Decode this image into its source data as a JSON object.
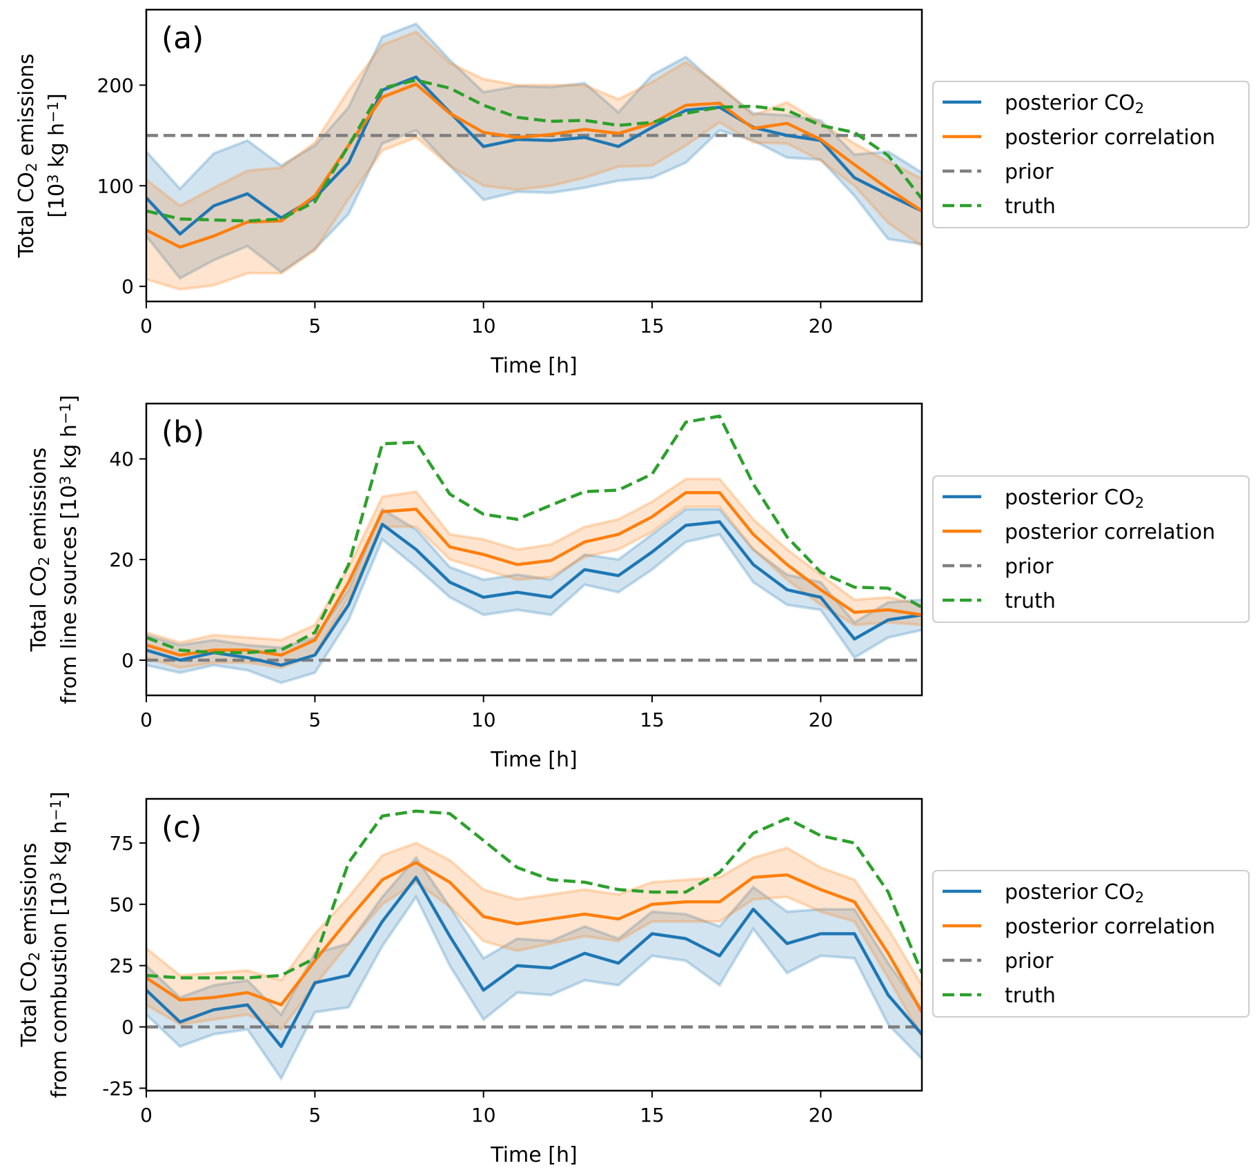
{
  "figure": {
    "legend_items": [
      {
        "key": "posterior_co2",
        "label_main": "posterior CO",
        "label_sub": "2",
        "color": "#1f77b4",
        "style": "solid"
      },
      {
        "key": "posterior_correlation",
        "label_main": "posterior correlation",
        "label_sub": "",
        "color": "#ff7f0e",
        "style": "solid"
      },
      {
        "key": "prior",
        "label_main": "prior",
        "label_sub": "",
        "color": "#7f7f7f",
        "style": "dashed"
      },
      {
        "key": "truth",
        "label_main": "truth",
        "label_sub": "",
        "color": "#2ca02c",
        "style": "dashed"
      }
    ]
  },
  "chart_data": [
    {
      "type": "line",
      "panel": "(a)",
      "xlabel": "Time [h]",
      "ylabel_lines": [
        [
          {
            "t": "Total CO"
          },
          {
            "t": "2",
            "sub": true
          },
          {
            "t": " emissions"
          }
        ],
        [
          {
            "t": "[10"
          },
          {
            "t": "3",
            "sup": true
          },
          {
            "t": " kg h"
          },
          {
            "t": "−1",
            "sup": true
          },
          {
            "t": "]"
          }
        ]
      ],
      "xlim": [
        0,
        23
      ],
      "ylim": [
        -15,
        275
      ],
      "xticks": [
        0,
        5,
        10,
        15,
        20
      ],
      "yticks": [
        0,
        100,
        200
      ],
      "ytick_labels": [
        "0",
        "100",
        "200"
      ],
      "x": [
        0,
        1,
        2,
        3,
        4,
        5,
        6,
        7,
        8,
        9,
        10,
        11,
        12,
        13,
        14,
        15,
        16,
        17,
        18,
        19,
        20,
        21,
        22,
        23
      ],
      "series": [
        {
          "key": "posterior_co2",
          "name": "posterior CO2",
          "values": [
            88,
            52,
            80,
            92,
            68,
            88,
            123,
            195,
            208,
            173,
            139,
            146,
            145,
            148,
            139,
            158,
            175,
            178,
            158,
            150,
            145,
            108,
            91,
            75
          ],
          "lower": [
            50,
            8,
            26,
            40,
            14,
            37,
            72,
            142,
            155,
            120,
            86,
            94,
            93,
            98,
            105,
            108,
            123,
            155,
            145,
            128,
            126,
            90,
            47,
            42
          ],
          "upper": [
            134,
            97,
            132,
            145,
            120,
            140,
            178,
            248,
            261,
            225,
            193,
            199,
            198,
            202,
            173,
            210,
            228,
            198,
            172,
            170,
            165,
            131,
            134,
            113
          ]
        },
        {
          "key": "posterior_correlation",
          "name": "posterior correlation",
          "values": [
            56,
            39,
            50,
            64,
            65,
            90,
            140,
            188,
            201,
            172,
            153,
            148,
            151,
            156,
            152,
            162,
            180,
            182,
            157,
            162,
            146,
            121,
            97,
            75
          ],
          "lower": [
            7,
            -3,
            1,
            13,
            13,
            36,
            87,
            135,
            148,
            120,
            100,
            96,
            100,
            108,
            119,
            120,
            140,
            163,
            143,
            142,
            125,
            100,
            63,
            40
          ],
          "upper": [
            106,
            80,
            98,
            115,
            118,
            143,
            195,
            240,
            253,
            222,
            206,
            200,
            200,
            200,
            186,
            203,
            223,
            200,
            170,
            183,
            162,
            142,
            124,
            107
          ]
        },
        {
          "key": "prior",
          "name": "prior",
          "values": [
            150,
            150,
            150,
            150,
            150,
            150,
            150,
            150,
            150,
            150,
            150,
            150,
            150,
            150,
            150,
            150,
            150,
            150,
            150,
            150,
            150,
            150,
            150,
            150
          ]
        },
        {
          "key": "truth",
          "name": "truth",
          "values": [
            75,
            67,
            66,
            65,
            67,
            84,
            140,
            197,
            205,
            197,
            180,
            168,
            164,
            165,
            160,
            163,
            172,
            178,
            179,
            175,
            160,
            153,
            130,
            87
          ]
        }
      ]
    },
    {
      "type": "line",
      "panel": "(b)",
      "xlabel": "Time [h]",
      "ylabel_lines": [
        [
          {
            "t": "Total CO"
          },
          {
            "t": "2",
            "sub": true
          },
          {
            "t": " emissions"
          }
        ],
        [
          {
            "t": "from line sources [10"
          },
          {
            "t": "3",
            "sup": true
          },
          {
            "t": " kg h"
          },
          {
            "t": "−1",
            "sup": true
          },
          {
            "t": "]"
          }
        ]
      ],
      "xlim": [
        0,
        23
      ],
      "ylim": [
        -7,
        51
      ],
      "xticks": [
        0,
        5,
        10,
        15,
        20
      ],
      "yticks": [
        0,
        20,
        40
      ],
      "ytick_labels": [
        "0",
        "20",
        "40"
      ],
      "x": [
        0,
        1,
        2,
        3,
        4,
        5,
        6,
        7,
        8,
        9,
        10,
        11,
        12,
        13,
        14,
        15,
        16,
        17,
        18,
        19,
        20,
        21,
        22,
        23
      ],
      "series": [
        {
          "key": "posterior_co2",
          "name": "posterior CO2",
          "values": [
            2,
            0,
            1.5,
            0.5,
            -1,
            1,
            11,
            27,
            22,
            15.5,
            12.5,
            13.5,
            12.5,
            18,
            16.8,
            21.5,
            26.8,
            27.5,
            19,
            14,
            12.5,
            4.2,
            8,
            9
          ],
          "lower": [
            -1,
            -2.5,
            -1,
            -2,
            -4.5,
            -2.5,
            8,
            24,
            18.5,
            12.5,
            9,
            10,
            9,
            15,
            13.5,
            18,
            23.5,
            25,
            15.5,
            11,
            10,
            0.5,
            4.5,
            6
          ],
          "upper": [
            5,
            3,
            4,
            3,
            2.5,
            4.5,
            14,
            30,
            26,
            18.5,
            16,
            17,
            16,
            21,
            20,
            25,
            30,
            30,
            22,
            17,
            15.5,
            7.5,
            11.5,
            12
          ]
        },
        {
          "key": "posterior_correlation",
          "name": "posterior correlation",
          "values": [
            3,
            1,
            2,
            2,
            1,
            4,
            15.5,
            29.5,
            30,
            22.5,
            21,
            19,
            19.8,
            23.5,
            25,
            28.5,
            33.3,
            33.3,
            25,
            19,
            14,
            9.5,
            10,
            9
          ],
          "lower": [
            0.5,
            -1.5,
            -0.5,
            -0.5,
            -1.5,
            1,
            12.5,
            26.5,
            26.5,
            20,
            18,
            16,
            16.5,
            20.5,
            22,
            25.5,
            30.5,
            30.5,
            22,
            16,
            11,
            7,
            7.5,
            7
          ],
          "upper": [
            5.5,
            3.5,
            5,
            4.5,
            4,
            7,
            18.5,
            32.5,
            33.5,
            25,
            24,
            22,
            23,
            26.5,
            28,
            31.5,
            36,
            36,
            28,
            22,
            17,
            12,
            12.5,
            11
          ]
        },
        {
          "key": "prior",
          "name": "prior",
          "values": [
            0,
            0,
            0,
            0,
            0,
            0,
            0,
            0,
            0,
            0,
            0,
            0,
            0,
            0,
            0,
            0,
            0,
            0,
            0,
            0,
            0,
            0,
            0,
            0
          ]
        },
        {
          "key": "truth",
          "name": "truth",
          "values": [
            4.5,
            2,
            1.5,
            1.5,
            2,
            5.5,
            19,
            43,
            43.3,
            33,
            29,
            28,
            30.8,
            33.5,
            33.8,
            37,
            47.3,
            48.5,
            35,
            24.5,
            17.5,
            14.5,
            14.3,
            10.5
          ]
        }
      ]
    },
    {
      "type": "line",
      "panel": "(c)",
      "xlabel": "Time [h]",
      "ylabel_lines": [
        [
          {
            "t": "Total CO"
          },
          {
            "t": "2",
            "sub": true
          },
          {
            "t": " emissions"
          }
        ],
        [
          {
            "t": "from combustion [10"
          },
          {
            "t": "3",
            "sup": true
          },
          {
            "t": " kg h"
          },
          {
            "t": "−1",
            "sup": true
          },
          {
            "t": "]"
          }
        ]
      ],
      "xlim": [
        0,
        23
      ],
      "ylim": [
        -26,
        93
      ],
      "xticks": [
        0,
        5,
        10,
        15,
        20
      ],
      "yticks": [
        -25,
        0,
        25,
        50,
        75
      ],
      "ytick_labels": [
        "-25",
        "0",
        "25",
        "50",
        "75"
      ],
      "x": [
        0,
        1,
        2,
        3,
        4,
        5,
        6,
        7,
        8,
        9,
        10,
        11,
        12,
        13,
        14,
        15,
        16,
        17,
        18,
        19,
        20,
        21,
        22,
        23
      ],
      "series": [
        {
          "key": "posterior_co2",
          "name": "posterior CO2",
          "values": [
            15,
            2,
            7,
            9,
            -8,
            18,
            21,
            43,
            61,
            37,
            15,
            25,
            24,
            30,
            26,
            38,
            36,
            29,
            48,
            34,
            38,
            38,
            13,
            -3
          ],
          "lower": [
            5,
            -8,
            -3,
            -1,
            -21,
            6,
            8,
            33,
            53,
            25,
            3,
            14,
            13,
            19,
            17,
            29,
            27,
            17,
            40,
            22,
            29,
            28,
            1,
            -13
          ],
          "upper": [
            25,
            12,
            17,
            19,
            5,
            30,
            34,
            53,
            69,
            49,
            28,
            36,
            35,
            41,
            36,
            47,
            46,
            41,
            57,
            47,
            48,
            48,
            26,
            7
          ]
        },
        {
          "key": "posterior_correlation",
          "name": "posterior correlation",
          "values": [
            20,
            11,
            12,
            14,
            9,
            27,
            44,
            60,
            67,
            59,
            45,
            42,
            44,
            46,
            44,
            50,
            51,
            51,
            61,
            62,
            56,
            51,
            30,
            6
          ],
          "lower": [
            9,
            1,
            3,
            5,
            -1,
            17,
            34,
            50,
            59,
            49,
            35,
            31,
            34,
            37,
            35,
            43,
            43,
            43,
            52,
            53,
            47,
            43,
            20,
            -4
          ],
          "upper": [
            32,
            21,
            22,
            23,
            19,
            38,
            53,
            70,
            75,
            68,
            56,
            52,
            54,
            56,
            54,
            59,
            60,
            61,
            69,
            73,
            65,
            60,
            40,
            17
          ]
        },
        {
          "key": "prior",
          "name": "prior",
          "values": [
            0,
            0,
            0,
            0,
            0,
            0,
            0,
            0,
            0,
            0,
            0,
            0,
            0,
            0,
            0,
            0,
            0,
            0,
            0,
            0,
            0,
            0,
            0,
            0
          ]
        },
        {
          "key": "truth",
          "name": "truth",
          "values": [
            21,
            20,
            20,
            20,
            21,
            28,
            67,
            86,
            88,
            87,
            76,
            65,
            60,
            59,
            56,
            55,
            55,
            63,
            79,
            85,
            78,
            75,
            55,
            22
          ]
        }
      ]
    }
  ]
}
